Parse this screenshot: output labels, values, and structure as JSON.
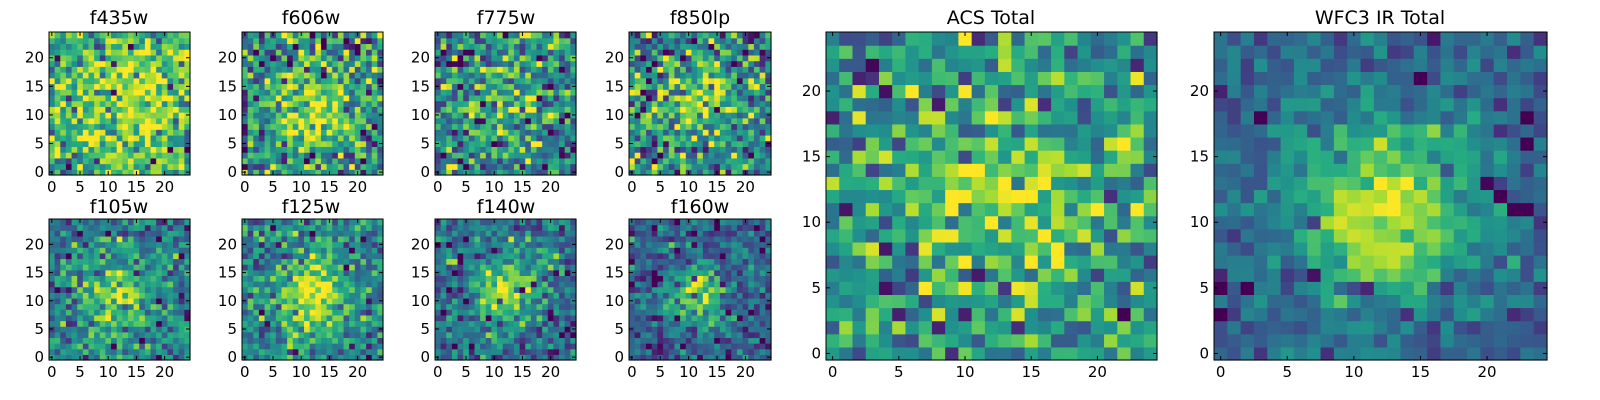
{
  "chart_data": [
    {
      "type": "heatmap",
      "title": "f435w",
      "grid_size": 25,
      "xticks": [
        "0",
        "5",
        "10",
        "15",
        "20"
      ],
      "yticks": [
        "0",
        "5",
        "10",
        "15",
        "20"
      ],
      "xlim": [
        -0.5,
        24.5
      ],
      "ylim": [
        -0.5,
        24.5
      ],
      "colormap": "viridis",
      "peak": [
        14,
        12
      ],
      "sigma": 9,
      "amp": 0.28,
      "base": 0.58,
      "noise": 0.2,
      "seed": 11
    },
    {
      "type": "heatmap",
      "title": "f606w",
      "grid_size": 25,
      "xticks": [
        "0",
        "5",
        "10",
        "15",
        "20"
      ],
      "yticks": [
        "0",
        "5",
        "10",
        "15",
        "20"
      ],
      "xlim": [
        -0.5,
        24.5
      ],
      "ylim": [
        -0.5,
        24.5
      ],
      "colormap": "viridis",
      "peak": [
        12,
        11
      ],
      "sigma": 6,
      "amp": 0.35,
      "base": 0.48,
      "noise": 0.22,
      "seed": 23
    },
    {
      "type": "heatmap",
      "title": "f775w",
      "grid_size": 25,
      "xticks": [
        "0",
        "5",
        "10",
        "15",
        "20"
      ],
      "yticks": [
        "0",
        "5",
        "10",
        "15",
        "20"
      ],
      "xlim": [
        -0.5,
        24.5
      ],
      "ylim": [
        -0.5,
        24.5
      ],
      "colormap": "viridis",
      "peak": [
        12,
        12
      ],
      "sigma": 5,
      "amp": 0.3,
      "base": 0.45,
      "noise": 0.24,
      "seed": 37
    },
    {
      "type": "heatmap",
      "title": "f850lp",
      "grid_size": 25,
      "xticks": [
        "0",
        "5",
        "10",
        "15",
        "20"
      ],
      "yticks": [
        "0",
        "5",
        "10",
        "15",
        "20"
      ],
      "xlim": [
        -0.5,
        24.5
      ],
      "ylim": [
        -0.5,
        24.5
      ],
      "colormap": "viridis",
      "peak": [
        12,
        12
      ],
      "sigma": 5,
      "amp": 0.3,
      "base": 0.48,
      "noise": 0.24,
      "seed": 41
    },
    {
      "type": "heatmap",
      "title": "f105w",
      "grid_size": 25,
      "xticks": [
        "0",
        "5",
        "10",
        "15",
        "20"
      ],
      "yticks": [
        "0",
        "5",
        "10",
        "15",
        "20"
      ],
      "xlim": [
        -0.5,
        24.5
      ],
      "ylim": [
        -0.5,
        24.5
      ],
      "colormap": "viridis",
      "peak": [
        11,
        11
      ],
      "sigma": 4.5,
      "amp": 0.45,
      "base": 0.42,
      "noise": 0.16,
      "seed": 53
    },
    {
      "type": "heatmap",
      "title": "f125w",
      "grid_size": 25,
      "xticks": [
        "0",
        "5",
        "10",
        "15",
        "20"
      ],
      "yticks": [
        "0",
        "5",
        "10",
        "15",
        "20"
      ],
      "xlim": [
        -0.5,
        24.5
      ],
      "ylim": [
        -0.5,
        24.5
      ],
      "colormap": "viridis",
      "peak": [
        12,
        11
      ],
      "sigma": 4.5,
      "amp": 0.4,
      "base": 0.45,
      "noise": 0.18,
      "seed": 61
    },
    {
      "type": "heatmap",
      "title": "f140w",
      "grid_size": 25,
      "xticks": [
        "0",
        "5",
        "10",
        "15",
        "20"
      ],
      "yticks": [
        "0",
        "5",
        "10",
        "15",
        "20"
      ],
      "xlim": [
        -0.5,
        24.5
      ],
      "ylim": [
        -0.5,
        24.5
      ],
      "colormap": "viridis",
      "peak": [
        12,
        12
      ],
      "sigma": 4,
      "amp": 0.5,
      "base": 0.38,
      "noise": 0.16,
      "seed": 71
    },
    {
      "type": "heatmap",
      "title": "f160w",
      "grid_size": 25,
      "xticks": [
        "0",
        "5",
        "10",
        "15",
        "20"
      ],
      "yticks": [
        "0",
        "5",
        "10",
        "15",
        "20"
      ],
      "xlim": [
        -0.5,
        24.5
      ],
      "ylim": [
        -0.5,
        24.5
      ],
      "colormap": "viridis",
      "peak": [
        11,
        11
      ],
      "sigma": 3.5,
      "amp": 0.58,
      "base": 0.32,
      "noise": 0.14,
      "seed": 83
    },
    {
      "type": "heatmap",
      "title": "ACS Total",
      "grid_size": 25,
      "xticks": [
        "0",
        "5",
        "10",
        "15",
        "20"
      ],
      "yticks": [
        "0",
        "5",
        "10",
        "15",
        "20"
      ],
      "xlim": [
        -0.5,
        24.5
      ],
      "ylim": [
        -0.5,
        24.5
      ],
      "colormap": "viridis",
      "peak": [
        13,
        12
      ],
      "sigma": 6,
      "amp": 0.32,
      "base": 0.5,
      "noise": 0.2,
      "seed": 97
    },
    {
      "type": "heatmap",
      "title": "WFC3 IR Total",
      "grid_size": 25,
      "xticks": [
        "0",
        "5",
        "10",
        "15",
        "20"
      ],
      "yticks": [
        "0",
        "5",
        "10",
        "15",
        "20"
      ],
      "xlim": [
        -0.5,
        24.5
      ],
      "ylim": [
        -0.5,
        24.5
      ],
      "colormap": "viridis",
      "peak": [
        12,
        11
      ],
      "sigma": 4.8,
      "amp": 0.62,
      "base": 0.32,
      "noise": 0.1,
      "seed": 101
    }
  ]
}
